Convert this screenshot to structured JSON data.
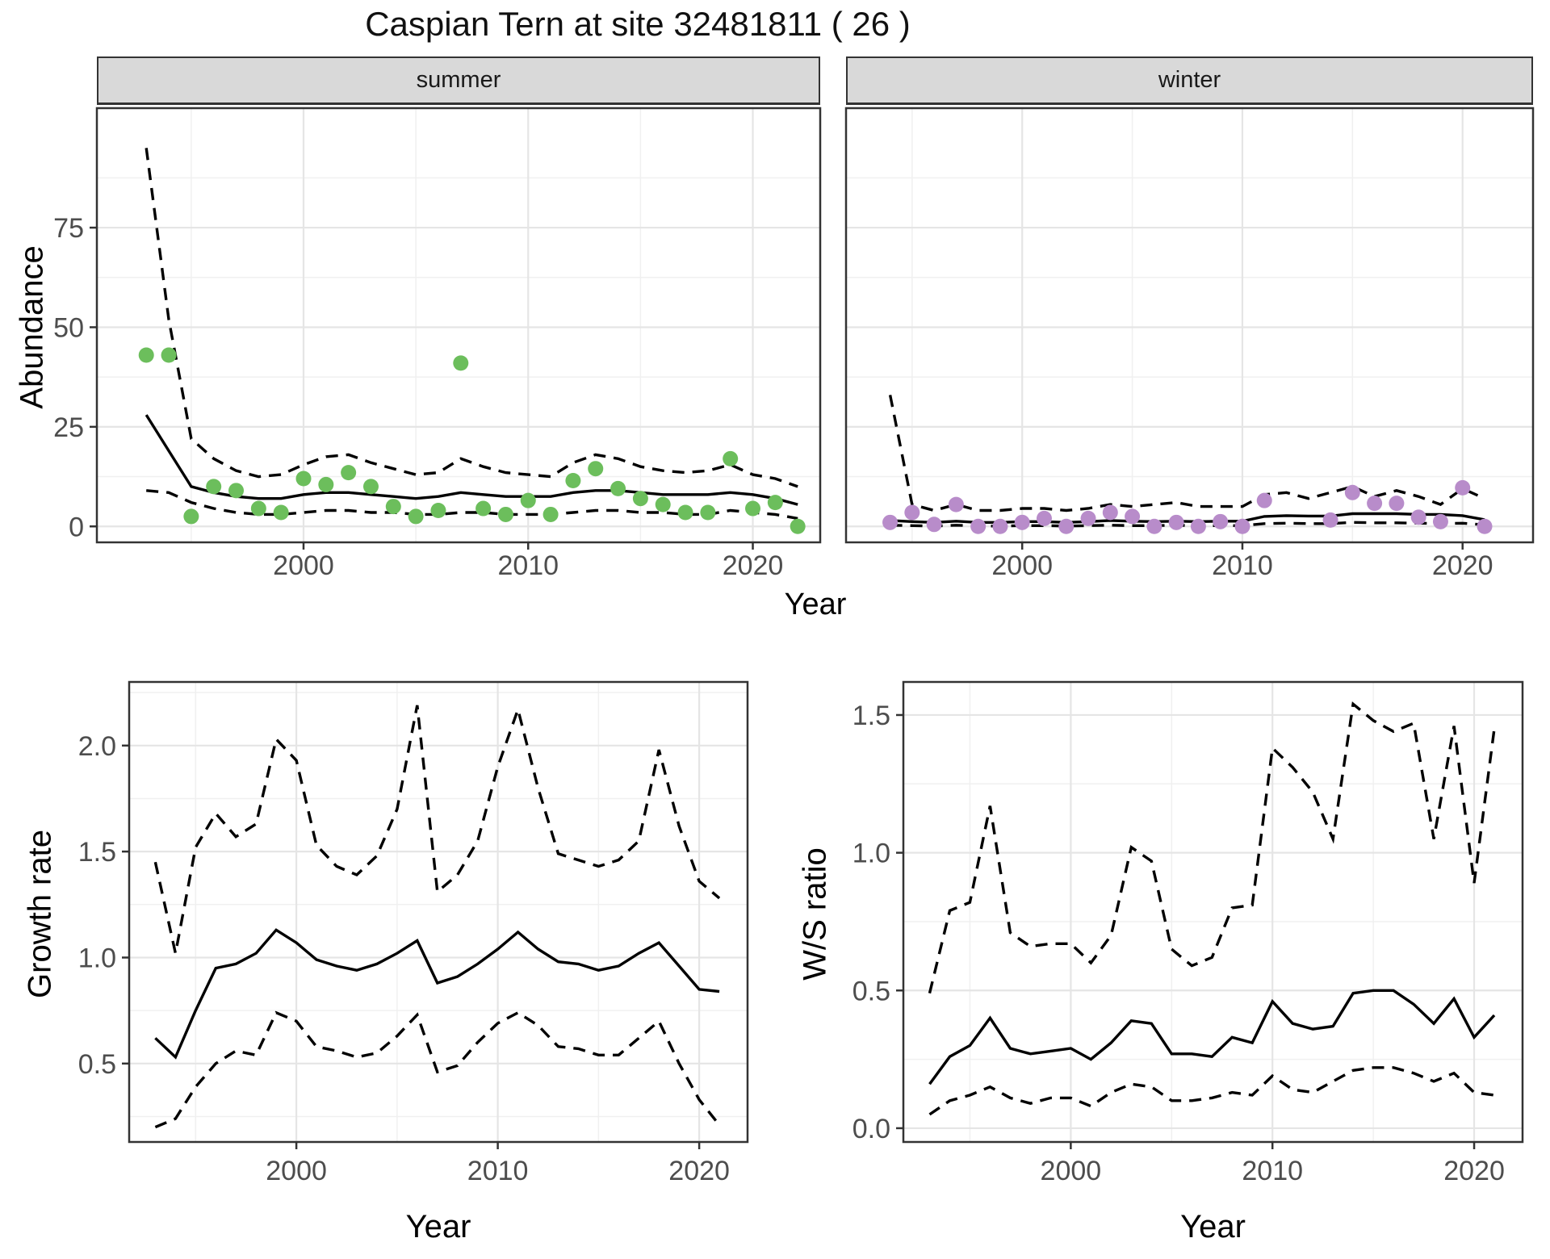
{
  "title": "Caspian Tern at site 32481811 ( 26 )",
  "facets": {
    "summer": "summer",
    "winter": "winter"
  },
  "axis_titles": {
    "abundance": "Abundance",
    "year_top": "Year",
    "growth_rate": "Growth rate",
    "ws_ratio": "W/S ratio",
    "year_bottom_left": "Year",
    "year_bottom_right": "Year"
  },
  "colors": {
    "summer_point": "#6CBE5C",
    "winter_point": "#B88CCA",
    "line": "#000000",
    "grid_major": "#e5e5e5",
    "grid_minor": "#f0f0f0",
    "panel_border": "#333333",
    "tick_label": "#4d4d4d",
    "strip_bg": "#d9d9d9"
  },
  "chart_data": [
    {
      "id": "summer",
      "type": "line+scatter",
      "facet_label": "summer",
      "xlabel": "Year",
      "ylabel": "Abundance",
      "xlim": [
        1990.8,
        2023.0
      ],
      "ylim": [
        -4,
        105
      ],
      "xticks": [
        2000,
        2010,
        2020
      ],
      "xminor": [
        1995,
        2005,
        2015
      ],
      "yticks": [
        0,
        25,
        50,
        75
      ],
      "yminor": [
        12.5,
        37.5,
        62.5,
        87.5
      ],
      "ytick_labels": [
        "0",
        "25",
        "50",
        "75"
      ],
      "show_y_labels": true,
      "years": [
        1993,
        1994,
        1995,
        1996,
        1997,
        1998,
        1999,
        2000,
        2001,
        2002,
        2003,
        2004,
        2005,
        2006,
        2007,
        2008,
        2009,
        2010,
        2011,
        2012,
        2013,
        2014,
        2015,
        2016,
        2017,
        2018,
        2019,
        2020,
        2021,
        2022
      ],
      "points": [
        43,
        43,
        2.5,
        10,
        9,
        4.5,
        3.5,
        12,
        10.5,
        13.5,
        10,
        5,
        2.5,
        4,
        41,
        4.5,
        3,
        6.5,
        3,
        11.5,
        14.5,
        9.5,
        7,
        5.5,
        3.5,
        3.5,
        17,
        4.5,
        6,
        0
      ],
      "series": [
        {
          "name": "upper95",
          "style": "dashed",
          "values": [
            95,
            52,
            22,
            17,
            14,
            12.5,
            13,
            15.5,
            17.5,
            18,
            16,
            14.5,
            13,
            13.5,
            17,
            15,
            13.5,
            13,
            12.5,
            16,
            18,
            17,
            15,
            14,
            13.5,
            14,
            15.5,
            13,
            12,
            10
          ]
        },
        {
          "name": "lower95",
          "style": "dashed",
          "values": [
            9,
            8.5,
            6,
            4.5,
            3.5,
            3,
            3,
            3.5,
            4,
            4,
            3.5,
            3.5,
            3,
            3,
            3.5,
            3.5,
            3,
            3,
            3,
            3.5,
            4,
            4,
            3.5,
            3.5,
            3,
            3,
            4,
            3.5,
            3,
            2
          ]
        },
        {
          "name": "median",
          "style": "solid",
          "values": [
            28,
            19,
            10,
            8.5,
            7.5,
            7,
            7,
            8,
            8.5,
            8.5,
            8,
            7.5,
            7,
            7.5,
            8.5,
            8,
            7.5,
            7.5,
            7.5,
            8.5,
            9,
            9,
            8.5,
            8,
            8,
            8,
            8.5,
            8,
            7,
            5.5
          ]
        }
      ],
      "point_color_key": "summer_point"
    },
    {
      "id": "winter",
      "type": "line+scatter",
      "facet_label": "winter",
      "xlabel": "Year",
      "ylabel": "Abundance",
      "xlim": [
        1992.0,
        2023.2
      ],
      "ylim": [
        -4,
        105
      ],
      "xticks": [
        2000,
        2010,
        2020
      ],
      "xminor": [
        1995,
        2005,
        2015
      ],
      "yticks": [
        0,
        25,
        50,
        75
      ],
      "yminor": [
        12.5,
        37.5,
        62.5,
        87.5
      ],
      "ytick_labels": [
        "0",
        "25",
        "50",
        "75"
      ],
      "show_y_labels": false,
      "years": [
        1994,
        1995,
        1996,
        1997,
        1998,
        1999,
        2000,
        2001,
        2002,
        2003,
        2004,
        2005,
        2006,
        2007,
        2008,
        2009,
        2010,
        2011,
        2012,
        2013,
        2014,
        2015,
        2016,
        2017,
        2018,
        2019,
        2020,
        2021
      ],
      "points": [
        1,
        3.5,
        0.5,
        5.5,
        0,
        0,
        1,
        2,
        0,
        2,
        3.5,
        2.5,
        0,
        1,
        0,
        1.2,
        0,
        6.5,
        null,
        null,
        1.6,
        8.5,
        5.8,
        5.8,
        2.3,
        1.2,
        9.7,
        0
      ],
      "series": [
        {
          "name": "upper95",
          "style": "dashed",
          "values": [
            33,
            5.5,
            4,
            5.5,
            4,
            4,
            4.5,
            4.5,
            4,
            4.5,
            5.5,
            5,
            5.5,
            6,
            5,
            5,
            5,
            8,
            8.5,
            7,
            8.5,
            10,
            7.5,
            9,
            7.5,
            5.5,
            9.5,
            7
          ]
        },
        {
          "name": "lower95",
          "style": "dashed",
          "values": [
            0.3,
            0.2,
            0.1,
            0.3,
            0.1,
            0.1,
            0.2,
            0.2,
            0.1,
            0.2,
            0.3,
            0.2,
            0.2,
            0.3,
            0.2,
            0.2,
            0.2,
            0.7,
            0.8,
            0.7,
            0.7,
            1.0,
            0.9,
            0.9,
            0.8,
            0.7,
            0.8,
            0.4
          ]
        },
        {
          "name": "median",
          "style": "solid",
          "values": [
            1.5,
            1.2,
            1.0,
            1.3,
            1.0,
            1.0,
            1.2,
            1.2,
            1.0,
            1.2,
            1.5,
            1.3,
            1.2,
            1.3,
            1.2,
            1.3,
            1.3,
            2.5,
            2.7,
            2.6,
            2.6,
            3.2,
            3.2,
            3.2,
            3.0,
            3.0,
            2.7,
            1.7
          ]
        }
      ],
      "point_color_key": "winter_point"
    },
    {
      "id": "growth",
      "type": "line",
      "xlabel": "Year",
      "ylabel": "Growth rate",
      "xlim": [
        1991.7,
        2022.4
      ],
      "ylim": [
        0.13,
        2.3
      ],
      "xticks": [
        2000,
        2010,
        2020
      ],
      "xminor": [
        1995,
        2005,
        2015
      ],
      "yticks": [
        0.5,
        1.0,
        1.5,
        2.0
      ],
      "yminor": [
        0.25,
        0.75,
        1.25,
        1.75,
        2.25
      ],
      "ytick_labels": [
        "0.5",
        "1.0",
        "1.5",
        "2.0"
      ],
      "show_y_labels": true,
      "years": [
        1993,
        1994,
        1995,
        1996,
        1997,
        1998,
        1999,
        2000,
        2001,
        2002,
        2003,
        2004,
        2005,
        2006,
        2007,
        2008,
        2009,
        2010,
        2011,
        2012,
        2013,
        2014,
        2015,
        2016,
        2017,
        2018,
        2019,
        2020,
        2021
      ],
      "points": null,
      "series": [
        {
          "name": "upper95",
          "style": "dashed",
          "values": [
            1.45,
            1.02,
            1.52,
            1.68,
            1.57,
            1.63,
            2.03,
            1.93,
            1.53,
            1.43,
            1.39,
            1.48,
            1.7,
            2.19,
            1.31,
            1.39,
            1.55,
            1.9,
            2.17,
            1.8,
            1.49,
            1.46,
            1.43,
            1.46,
            1.55,
            1.98,
            1.62,
            1.36,
            1.28
          ]
        },
        {
          "name": "lower95",
          "style": "dashed",
          "values": [
            0.2,
            0.24,
            0.39,
            0.5,
            0.56,
            0.54,
            0.74,
            0.7,
            0.58,
            0.56,
            0.53,
            0.55,
            0.63,
            0.73,
            0.46,
            0.49,
            0.6,
            0.69,
            0.74,
            0.68,
            0.58,
            0.57,
            0.54,
            0.54,
            0.62,
            0.7,
            0.5,
            0.33,
            0.21
          ]
        },
        {
          "name": "median",
          "style": "solid",
          "values": [
            0.62,
            0.53,
            0.75,
            0.95,
            0.97,
            1.02,
            1.13,
            1.07,
            0.99,
            0.96,
            0.94,
            0.97,
            1.02,
            1.08,
            0.88,
            0.91,
            0.97,
            1.04,
            1.12,
            1.04,
            0.98,
            0.97,
            0.94,
            0.96,
            1.02,
            1.07,
            0.96,
            0.85,
            0.84
          ]
        }
      ],
      "point_color_key": null
    },
    {
      "id": "ws_ratio",
      "type": "line",
      "xlabel": "Year",
      "ylabel": "W/S ratio",
      "xlim": [
        1991.7,
        2022.4
      ],
      "ylim": [
        -0.05,
        1.62
      ],
      "xticks": [
        2000,
        2010,
        2020
      ],
      "xminor": [
        1995,
        2005,
        2015
      ],
      "yticks": [
        0.0,
        0.5,
        1.0,
        1.5
      ],
      "yminor": [
        0.25,
        0.75,
        1.25
      ],
      "ytick_labels": [
        "0.0",
        "0.5",
        "1.0",
        "1.5"
      ],
      "show_y_labels": true,
      "years": [
        1993,
        1994,
        1995,
        1996,
        1997,
        1998,
        1999,
        2000,
        2001,
        2002,
        2003,
        2004,
        2005,
        2006,
        2007,
        2008,
        2009,
        2010,
        2011,
        2012,
        2013,
        2014,
        2015,
        2016,
        2017,
        2018,
        2019,
        2020,
        2021
      ],
      "points": null,
      "series": [
        {
          "name": "upper95",
          "style": "dashed",
          "values": [
            0.49,
            0.79,
            0.82,
            1.17,
            0.71,
            0.66,
            0.67,
            0.67,
            0.6,
            0.7,
            1.02,
            0.97,
            0.65,
            0.59,
            0.62,
            0.8,
            0.81,
            1.38,
            1.31,
            1.22,
            1.05,
            1.54,
            1.48,
            1.44,
            1.47,
            1.05,
            1.46,
            0.89,
            1.45
          ]
        },
        {
          "name": "lower95",
          "style": "dashed",
          "values": [
            0.05,
            0.1,
            0.12,
            0.15,
            0.11,
            0.09,
            0.11,
            0.11,
            0.08,
            0.13,
            0.16,
            0.15,
            0.1,
            0.1,
            0.11,
            0.13,
            0.12,
            0.19,
            0.14,
            0.13,
            0.17,
            0.21,
            0.22,
            0.22,
            0.2,
            0.17,
            0.2,
            0.13,
            0.12
          ]
        },
        {
          "name": "median",
          "style": "solid",
          "values": [
            0.16,
            0.26,
            0.3,
            0.4,
            0.29,
            0.27,
            0.28,
            0.29,
            0.25,
            0.31,
            0.39,
            0.38,
            0.27,
            0.27,
            0.26,
            0.33,
            0.31,
            0.46,
            0.38,
            0.36,
            0.37,
            0.49,
            0.5,
            0.5,
            0.45,
            0.38,
            0.47,
            0.33,
            0.41
          ]
        }
      ],
      "point_color_key": null
    }
  ],
  "layout_note_ticks": {
    "x_tick_labels": [
      "2000",
      "2010",
      "2020"
    ]
  }
}
